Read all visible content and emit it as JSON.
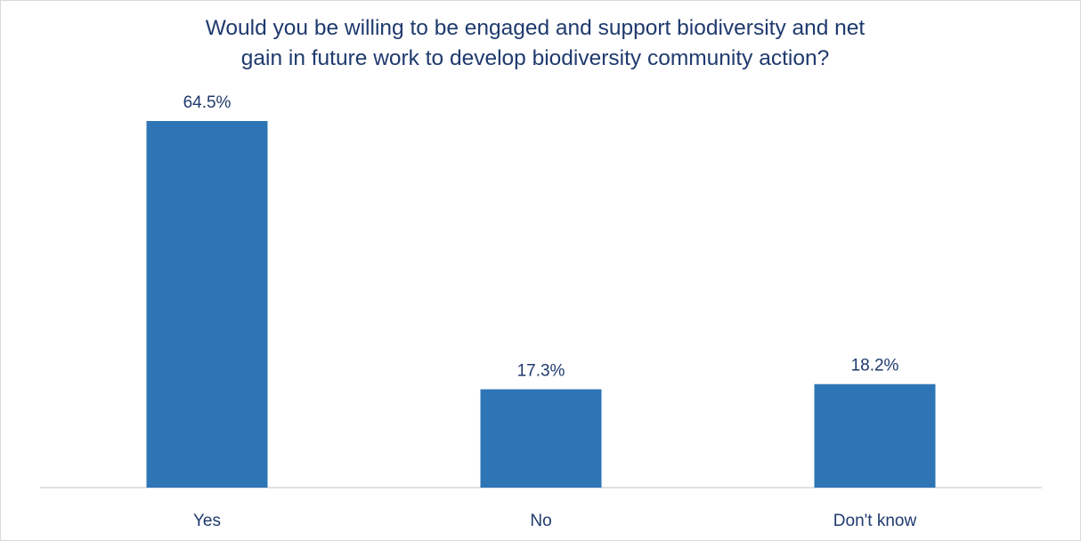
{
  "chart_data": {
    "type": "bar",
    "title_lines": [
      "Would you be willing to be engaged and support biodiversity and net",
      "gain in future work to develop biodiversity community action?"
    ],
    "categories": [
      "Yes",
      "No",
      "Don't know"
    ],
    "values": [
      64.5,
      17.3,
      18.2
    ],
    "value_labels": [
      "64.5%",
      "17.3%",
      "18.2%"
    ],
    "value_unit": "%",
    "xlabel": "",
    "ylabel": "",
    "ylim": [
      0,
      64.5
    ],
    "grid": false,
    "legend": "none",
    "colors": {
      "bar": "#2e75b6",
      "text": "#1f3a6e",
      "axis": "#d9d9d9"
    }
  }
}
